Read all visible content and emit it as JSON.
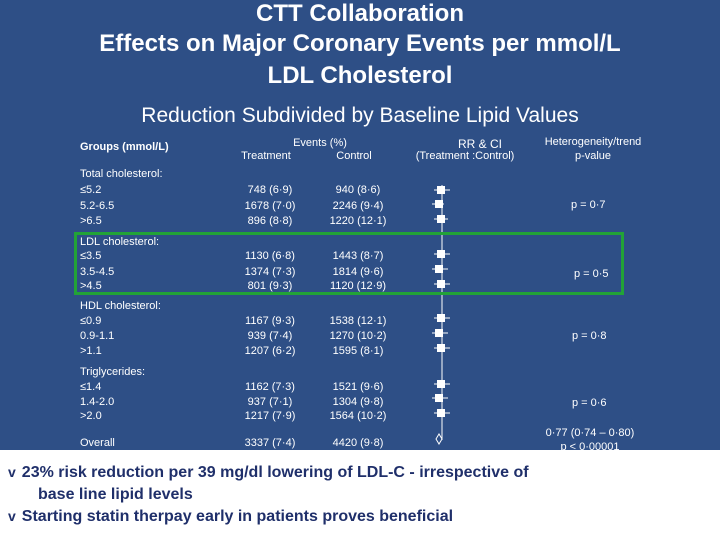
{
  "title": {
    "line1": "CTT Collaboration",
    "line2": "Effects on Major Coronary Events per mmol/L",
    "line3": "LDL Cholesterol"
  },
  "subtitle": "Reduction Subdivided by Baseline Lipid Values",
  "table": {
    "headers": {
      "groups": "Groups (mmol/L)",
      "events": "Events (%)",
      "treatment": "Treatment",
      "control": "Control",
      "rr": "RR & CI",
      "rr_sub": "(Treatment :Control)",
      "het": "Heterogeneity/trend",
      "het_sub": "p-value"
    },
    "groups": [
      {
        "label": "Total cholesterol:",
        "pvalue": "p = 0·7",
        "rows": [
          {
            "name": "≤5.2",
            "treatment": "748 (6·9)",
            "control": "940 (8·6)"
          },
          {
            "name": "5.2-6.5",
            "treatment": "1678 (7·0)",
            "control": "2246 (9·4)"
          },
          {
            "name": ">6.5",
            "treatment": "896 (8·8)",
            "control": "1220 (12·1)"
          }
        ]
      },
      {
        "label": "LDL cholesterol:",
        "pvalue": "p = 0·5",
        "rows": [
          {
            "name": "≤3.5",
            "treatment": "1130 (6·8)",
            "control": "1443 (8·7)"
          },
          {
            "name": "3.5-4.5",
            "treatment": "1374 (7·3)",
            "control": "1814 (9·6)"
          },
          {
            "name": ">4.5",
            "treatment": "801 (9·3)",
            "control": "1120 (12·9)"
          }
        ]
      },
      {
        "label": "HDL cholesterol:",
        "pvalue": "p = 0·8",
        "rows": [
          {
            "name": "≤0.9",
            "treatment": "1167 (9·3)",
            "control": "1538 (12·1)"
          },
          {
            "name": "0.9-1.1",
            "treatment": "939 (7·4)",
            "control": "1270 (10·2)"
          },
          {
            "name": ">1.1",
            "treatment": "1207 (6·2)",
            "control": "1595 (8·1)"
          }
        ]
      },
      {
        "label": "Triglycerides:",
        "pvalue": "p = 0·6",
        "rows": [
          {
            "name": "≤1.4",
            "treatment": "1162 (7·3)",
            "control": "1521 (9·6)"
          },
          {
            "name": "1.4-2.0",
            "treatment": "937 (7·1)",
            "control": "1304 (9·8)"
          },
          {
            "name": ">2.0",
            "treatment": "1217 (7·9)",
            "control": "1564 (10·2)"
          }
        ]
      }
    ],
    "overall": {
      "label": "Overall",
      "treatment": "3337 (7·4)",
      "control": "4420 (9·8)",
      "estimate": "0·77 (0·74 – 0·80)",
      "p": "p < 0·00001"
    }
  },
  "bullets": [
    {
      "mark": "v",
      "text": "23% risk reduction per 39 mg/dl lowering of  LDL-C  - irrespective of",
      "cont": "base line lipid levels"
    },
    {
      "mark": "v",
      "text": "Starting statin therpay early in patients proves beneficial"
    }
  ],
  "colors": {
    "background": "#2e4f86",
    "highlight_box": "#22a337",
    "bottom_panel": "#ffffff",
    "bullet_text": "#1f2f6a"
  }
}
